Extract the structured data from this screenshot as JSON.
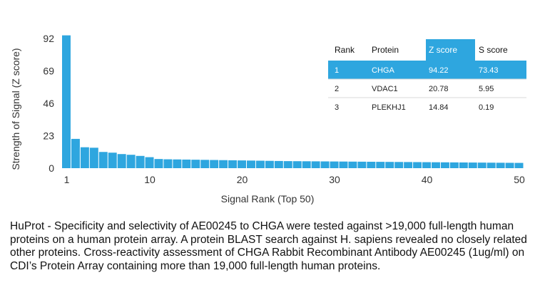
{
  "chart_data": {
    "type": "bar",
    "xlabel": "Signal Rank (Top 50)",
    "ylabel": "Strength of Signal (Z score)",
    "ylim": [
      0,
      92
    ],
    "yticks": [
      "0",
      "23",
      "46",
      "69",
      "92"
    ],
    "xticks": [
      {
        "rank": 1,
        "label": "1"
      },
      {
        "rank": 10,
        "label": "10"
      },
      {
        "rank": 20,
        "label": "20"
      },
      {
        "rank": 30,
        "label": "30"
      },
      {
        "rank": 40,
        "label": "40"
      },
      {
        "rank": 50,
        "label": "50"
      }
    ],
    "bar_color": "#2ea6df",
    "values": [
      94.22,
      20.78,
      14.84,
      14.5,
      11.5,
      11.0,
      10.0,
      9.5,
      8.7,
      7.8,
      6.5,
      6.3,
      6.2,
      6.1,
      6.0,
      5.9,
      5.8,
      5.7,
      5.6,
      5.5,
      5.4,
      5.3,
      5.2,
      5.1,
      5.0,
      4.95,
      4.9,
      4.85,
      4.8,
      4.75,
      4.7,
      4.65,
      4.6,
      4.55,
      4.5,
      4.45,
      4.4,
      4.35,
      4.3,
      4.25,
      4.2,
      4.15,
      4.1,
      4.05,
      4.0,
      3.95,
      3.9,
      3.85,
      3.8,
      3.75
    ]
  },
  "table": {
    "headers": [
      "Rank",
      "Protein",
      "Z score",
      "S score"
    ],
    "rows": [
      [
        "1",
        "CHGA",
        "94.22",
        "73.43"
      ],
      [
        "2",
        "VDAC1",
        "20.78",
        "5.95"
      ],
      [
        "3",
        "PLEKHJ1",
        "14.84",
        "0.19"
      ]
    ],
    "highlight_color": "#2ea6df"
  },
  "caption": "HuProt  -  Specificity and selectivity of AE00245 to CHGA were tested against >19,000 full-length human proteins on a human protein array. A protein BLAST search against H. sapiens revealed no closely related other proteins. Cross-reactivity assessment of CHGA Rabbit Recombinant Antibody AE00245 (1ug/ml) on CDI’s Protein Array containing more than 19,000 full-length human proteins."
}
